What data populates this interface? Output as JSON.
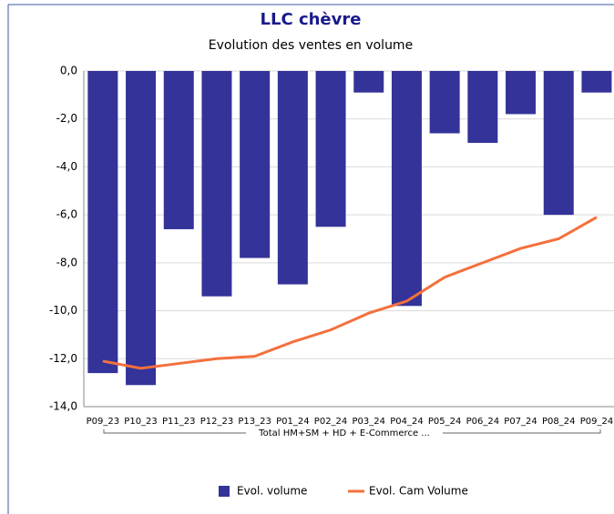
{
  "chart_data": {
    "type": "bar",
    "title": "LLC chèvre",
    "subtitle": "Evolution des ventes en volume",
    "group_label": "Total HM+SM + HD + E-Commerce ...",
    "categories": [
      "P09_23",
      "P10_23",
      "P11_23",
      "P12_23",
      "P13_23",
      "P01_24",
      "P02_24",
      "P03_24",
      "P04_24",
      "P05_24",
      "P06_24",
      "P07_24",
      "P08_24",
      "P09_24"
    ],
    "series": [
      {
        "name": "Evol. volume",
        "type": "bar",
        "color": "#333399",
        "values": [
          -12.6,
          -13.1,
          -6.6,
          -9.4,
          -7.8,
          -8.9,
          -6.5,
          -0.9,
          -9.8,
          -2.6,
          -3.0,
          -1.8,
          -6.0,
          -0.9
        ]
      },
      {
        "name": "Evol. Cam Volume",
        "type": "line",
        "color": "#f4703c",
        "values": [
          -12.1,
          -12.4,
          -12.2,
          -12.0,
          -11.9,
          -11.3,
          -10.8,
          -10.1,
          -9.6,
          -8.6,
          -8.0,
          -7.4,
          -7.0,
          -6.1
        ]
      }
    ],
    "ylim": [
      -14,
      0
    ],
    "yticks": [
      {
        "value": -14,
        "label": "-14,0"
      },
      {
        "value": -12,
        "label": "-12,0"
      },
      {
        "value": -10,
        "label": "-10,0"
      },
      {
        "value": -8,
        "label": "-8,0"
      },
      {
        "value": -6,
        "label": "-6,0"
      },
      {
        "value": -4,
        "label": "-4,0"
      },
      {
        "value": -2,
        "label": "-2,0"
      },
      {
        "value": 0,
        "label": "0,0"
      }
    ],
    "grid": true
  }
}
